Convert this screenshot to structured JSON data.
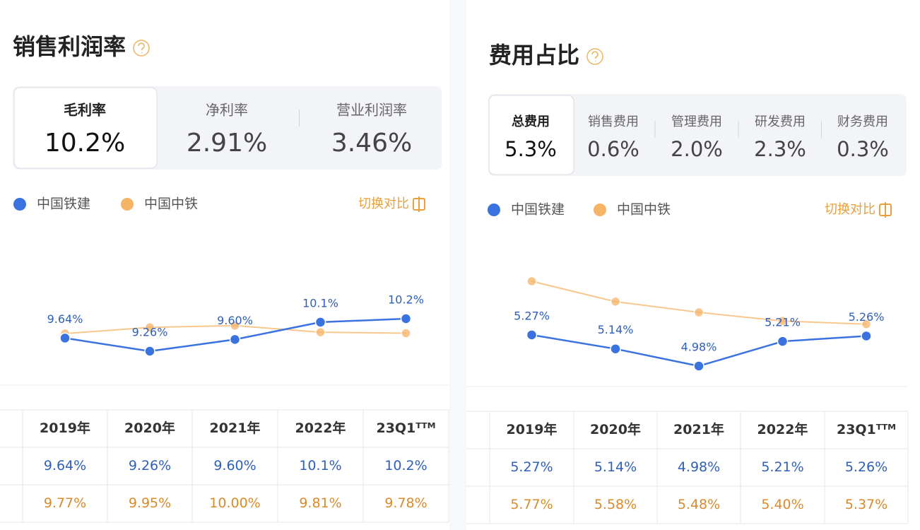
{
  "panels": [
    {
      "title": "销售利润率",
      "tabs": [
        {
          "label": "毛利率",
          "value": "10.2%"
        },
        {
          "label": "净利率",
          "value": "2.91%"
        },
        {
          "label": "营业利润率",
          "value": "3.46%"
        }
      ],
      "toggle": "切换对比",
      "table": {
        "rows": [
          [
            "9.64%",
            "9.26%",
            "9.60%",
            "10.1%",
            "10.2%"
          ],
          [
            "9.77%",
            "9.95%",
            "10.00%",
            "9.81%",
            "9.78%"
          ]
        ]
      }
    },
    {
      "title": "费用占比",
      "tabs": [
        {
          "label": "总费用",
          "value": "5.3%"
        },
        {
          "label": "销售费用",
          "value": "0.6%"
        },
        {
          "label": "管理费用",
          "value": "2.0%"
        },
        {
          "label": "研发费用",
          "value": "2.3%"
        },
        {
          "label": "财务费用",
          "value": "0.3%"
        }
      ],
      "toggle": "切换对比",
      "table": {
        "rows": [
          [
            "5.27%",
            "5.14%",
            "4.98%",
            "5.21%",
            "5.26%"
          ],
          [
            "5.77%",
            "5.58%",
            "5.48%",
            "5.40%",
            "5.37%"
          ]
        ]
      }
    }
  ],
  "chart_data": [
    {
      "type": "line",
      "categories": [
        "2019年",
        "2020年",
        "2021年",
        "2022年",
        "23Q1ᵀᵀᴹ"
      ],
      "series": [
        {
          "name": "中国铁建",
          "color": "#3a72e0",
          "values": [
            9.64,
            9.26,
            9.6,
            10.1,
            10.2
          ],
          "value_labels": [
            "9.64%",
            "9.26%",
            "9.60%",
            "10.1%",
            "10.2%"
          ]
        },
        {
          "name": "中国中铁",
          "color": "#f6b467",
          "values": [
            9.77,
            9.95,
            10.0,
            9.81,
            9.78
          ]
        }
      ]
    },
    {
      "type": "line",
      "categories": [
        "2019年",
        "2020年",
        "2021年",
        "2022年",
        "23Q1ᵀᵀᴹ"
      ],
      "series": [
        {
          "name": "中国铁建",
          "color": "#3a72e0",
          "values": [
            5.27,
            5.14,
            4.98,
            5.21,
            5.26
          ],
          "value_labels": [
            "5.27%",
            "5.14%",
            "4.98%",
            "5.21%",
            "5.26%"
          ]
        },
        {
          "name": "中国中铁",
          "color": "#f6b467",
          "values": [
            5.77,
            5.58,
            5.48,
            5.4,
            5.37
          ]
        }
      ]
    }
  ]
}
